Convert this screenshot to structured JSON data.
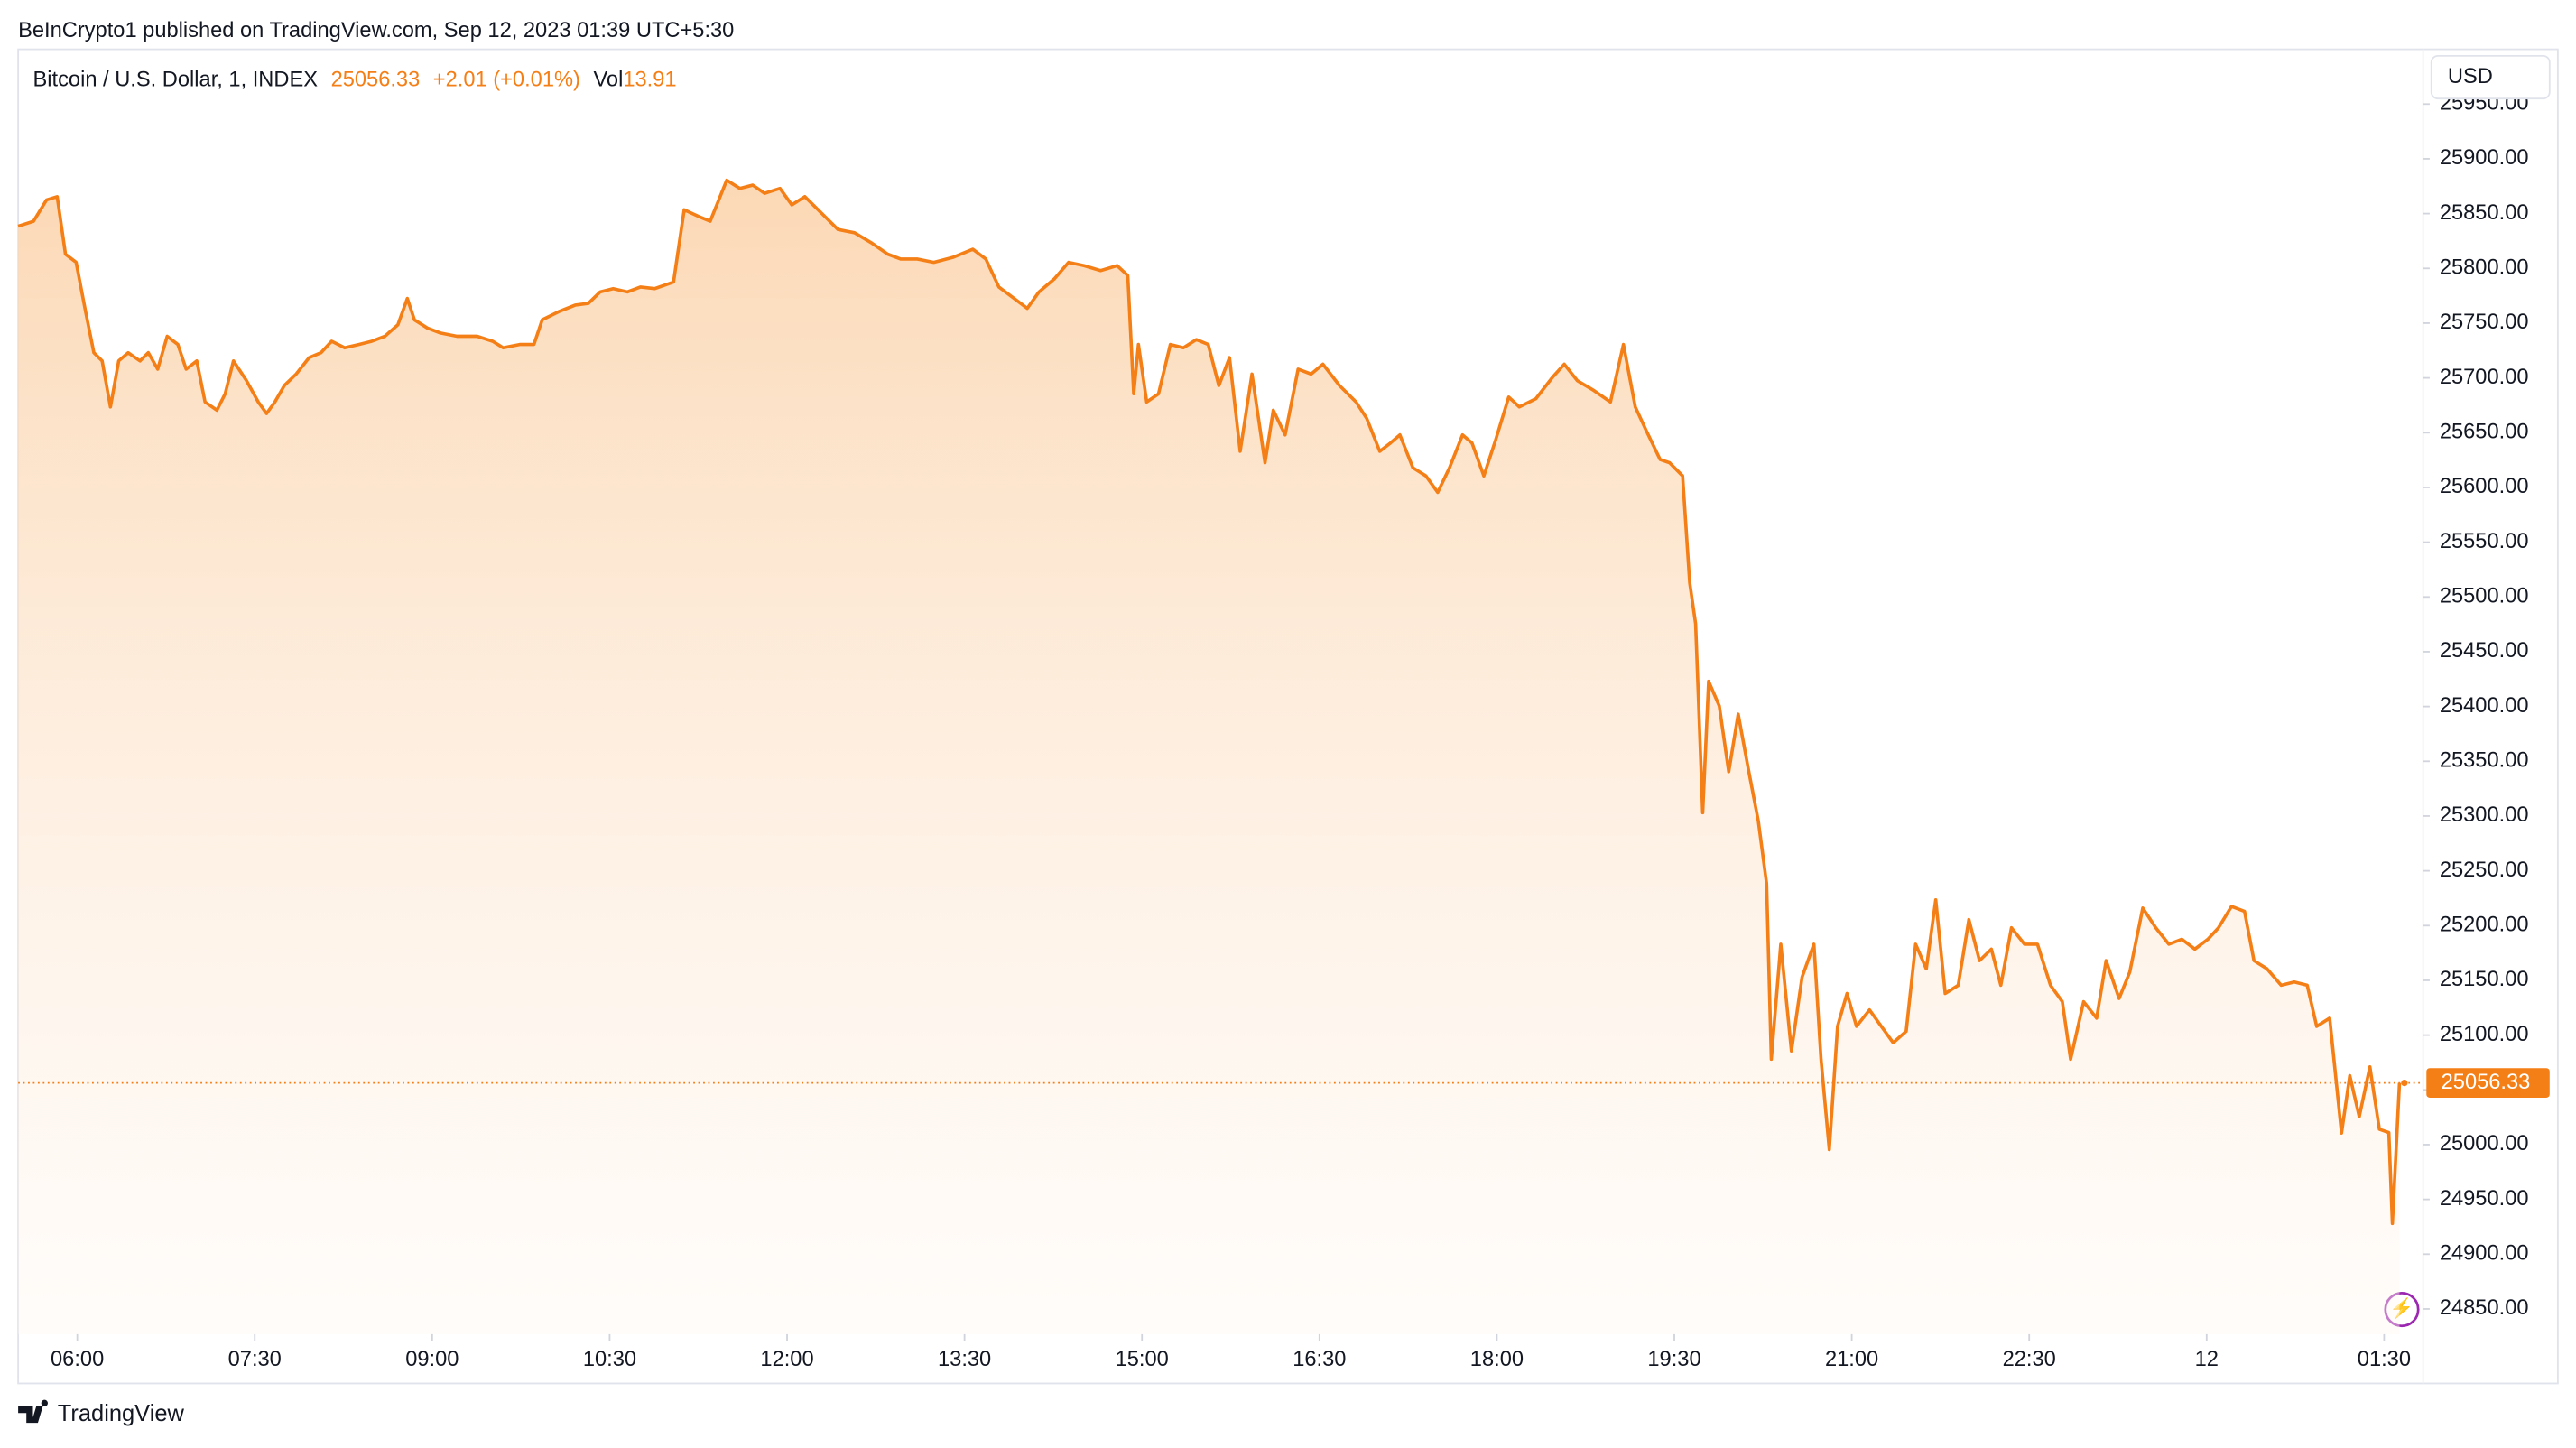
{
  "header": {
    "publisher": "BeInCrypto1 published on TradingView.com, Sep 12, 2023 01:39 UTC+5:30"
  },
  "legend": {
    "symbol": "Bitcoin / U.S. Dollar, 1, INDEX",
    "price": "25056.33",
    "change": "+2.01 (+0.01%)",
    "volume_label": "Vol",
    "volume": "13.91"
  },
  "currency": "USD",
  "footer": {
    "brand": "TradingView"
  },
  "chart_data": {
    "type": "area",
    "color": "#f57f17",
    "last_price": 25056.33,
    "last_price_label": "25056.33",
    "xlim": [
      5.5,
      25.83
    ],
    "ylim": [
      24827,
      26000
    ],
    "xticks": [
      {
        "value": 6,
        "label": "06:00"
      },
      {
        "value": 7.5,
        "label": "07:30"
      },
      {
        "value": 9,
        "label": "09:00"
      },
      {
        "value": 10.5,
        "label": "10:30"
      },
      {
        "value": 12,
        "label": "12:00"
      },
      {
        "value": 13.5,
        "label": "13:30"
      },
      {
        "value": 15,
        "label": "15:00"
      },
      {
        "value": 16.5,
        "label": "16:30"
      },
      {
        "value": 18,
        "label": "18:00"
      },
      {
        "value": 19.5,
        "label": "19:30"
      },
      {
        "value": 21,
        "label": "21:00"
      },
      {
        "value": 22.5,
        "label": "22:30"
      },
      {
        "value": 24,
        "label": "12"
      },
      {
        "value": 25.5,
        "label": "01:30"
      }
    ],
    "yticks": [
      {
        "value": 24850,
        "label": "24850.00"
      },
      {
        "value": 24900,
        "label": "24900.00"
      },
      {
        "value": 24950,
        "label": "24950.00"
      },
      {
        "value": 25000,
        "label": "25000.00"
      },
      {
        "value": 25050,
        "label": "25050.00"
      },
      {
        "value": 25100,
        "label": "25100.00"
      },
      {
        "value": 25150,
        "label": "25150.00"
      },
      {
        "value": 25200,
        "label": "25200.00"
      },
      {
        "value": 25250,
        "label": "25250.00"
      },
      {
        "value": 25300,
        "label": "25300.00"
      },
      {
        "value": 25350,
        "label": "25350.00"
      },
      {
        "value": 25400,
        "label": "25400.00"
      },
      {
        "value": 25450,
        "label": "25450.00"
      },
      {
        "value": 25500,
        "label": "25500.00"
      },
      {
        "value": 25550,
        "label": "25550.00"
      },
      {
        "value": 25600,
        "label": "25600.00"
      },
      {
        "value": 25650,
        "label": "25650.00"
      },
      {
        "value": 25700,
        "label": "25700.00"
      },
      {
        "value": 25750,
        "label": "25750.00"
      },
      {
        "value": 25800,
        "label": "25800.00"
      },
      {
        "value": 25850,
        "label": "25850.00"
      },
      {
        "value": 25900,
        "label": "25900.00"
      },
      {
        "value": 25950,
        "label": "25950.00"
      }
    ],
    "x": [
      5.5,
      5.63,
      5.74,
      5.83,
      5.9,
      5.99,
      6.07,
      6.14,
      6.21,
      6.28,
      6.35,
      6.43,
      6.53,
      6.6,
      6.68,
      6.76,
      6.85,
      6.92,
      7.01,
      7.08,
      7.18,
      7.25,
      7.32,
      7.43,
      7.53,
      7.6,
      7.67,
      7.75,
      7.85,
      7.96,
      8.06,
      8.15,
      8.26,
      8.38,
      8.49,
      8.6,
      8.71,
      8.79,
      8.85,
      8.96,
      9.07,
      9.21,
      9.38,
      9.51,
      9.6,
      9.74,
      9.86,
      9.93,
      10.07,
      10.21,
      10.32,
      10.42,
      10.53,
      10.65,
      10.76,
      10.88,
      11.04,
      11.13,
      11.25,
      11.35,
      11.49,
      11.6,
      11.71,
      11.81,
      11.94,
      12.04,
      12.15,
      12.29,
      12.43,
      12.57,
      12.71,
      12.85,
      12.96,
      13.1,
      13.24,
      13.4,
      13.57,
      13.68,
      13.79,
      13.92,
      14.03,
      14.13,
      14.26,
      14.38,
      14.51,
      14.65,
      14.79,
      14.88,
      14.93,
      14.97,
      15.04,
      15.14,
      15.24,
      15.35,
      15.46,
      15.56,
      15.65,
      15.74,
      15.83,
      15.93,
      16.04,
      16.11,
      16.21,
      16.32,
      16.43,
      16.53,
      16.67,
      16.81,
      16.9,
      17.01,
      17.1,
      17.18,
      17.29,
      17.4,
      17.5,
      17.6,
      17.71,
      17.79,
      17.89,
      17.99,
      18.1,
      18.19,
      18.33,
      18.47,
      18.57,
      18.68,
      18.82,
      18.96,
      19.07,
      19.17,
      19.26,
      19.38,
      19.46,
      19.57,
      19.63,
      19.68,
      19.74,
      19.79,
      19.88,
      19.96,
      20.04,
      20.13,
      20.21,
      20.28,
      20.32,
      20.4,
      20.49,
      20.58,
      20.68,
      20.74,
      20.81,
      20.88,
      20.96,
      21.04,
      21.15,
      21.25,
      21.35,
      21.46,
      21.54,
      21.63,
      21.71,
      21.79,
      21.9,
      21.99,
      22.08,
      22.18,
      22.26,
      22.35,
      22.46,
      22.57,
      22.68,
      22.78,
      22.85,
      22.96,
      23.07,
      23.15,
      23.26,
      23.35,
      23.46,
      23.57,
      23.68,
      23.79,
      23.9,
      24.01,
      24.1,
      24.21,
      24.32,
      24.4,
      24.51,
      24.63,
      24.74,
      24.85,
      24.93,
      25.04,
      25.14,
      25.21,
      25.29,
      25.38,
      25.46,
      25.54,
      25.57,
      25.63
    ],
    "series": [
      {
        "name": "Bitcoin / U.S. Dollar",
        "color": "#f57f17",
        "values": [
          25838.5,
          25843,
          25862.5,
          25865.5,
          25813,
          25805.5,
          25760.5,
          25723,
          25715.5,
          25673.5,
          25715.5,
          25723,
          25715.5,
          25723,
          25708,
          25738,
          25730.5,
          25708,
          25715.5,
          25678,
          25670.5,
          25685.5,
          25715.5,
          25697.5,
          25678,
          25667.5,
          25678,
          25693,
          25703.5,
          25718.5,
          25723,
          25733.5,
          25727.5,
          25730.5,
          25733.5,
          25738,
          25748.5,
          25772.5,
          25753,
          25745.5,
          25741,
          25738,
          25738,
          25733.5,
          25727.5,
          25730.5,
          25730.5,
          25753,
          25760.5,
          25766.5,
          25768,
          25778.5,
          25781.5,
          25778.5,
          25783,
          25781.5,
          25787.5,
          25853.5,
          25847.5,
          25843,
          25880.5,
          25873,
          25876,
          25868.5,
          25873,
          25858,
          25865.5,
          25850.5,
          25835.5,
          25832.5,
          25823.5,
          25813,
          25808.5,
          25808.5,
          25805.5,
          25810,
          25817.5,
          25808.5,
          25783,
          25772.5,
          25763.5,
          25778.5,
          25790.5,
          25805.5,
          25802.5,
          25798,
          25802.5,
          25793.5,
          25685.5,
          25730.5,
          25678,
          25685.5,
          25730.5,
          25727.5,
          25735,
          25730.5,
          25693,
          25718.5,
          25633,
          25703.5,
          25622.5,
          25670.5,
          25648,
          25708,
          25703.5,
          25712.5,
          25693,
          25678,
          25663,
          25633,
          25640.5,
          25648,
          25618,
          25610.5,
          25595.5,
          25618,
          25648,
          25640.5,
          25610.5,
          25643.5,
          25682.5,
          25673.5,
          25681,
          25700.5,
          25712.5,
          25697.5,
          25688.5,
          25678,
          25730.5,
          25673.5,
          25652.5,
          25625.5,
          25622.5,
          25610.5,
          25513,
          25475.5,
          25303,
          25423,
          25400.5,
          25340.5,
          25393,
          25340.5,
          25295.5,
          25238.5,
          25078,
          25183,
          25085.5,
          25153,
          25183,
          25078,
          24995.5,
          25108,
          25138,
          25108,
          25123,
          25108,
          25093,
          25103.5,
          25183,
          25160.5,
          25223.5,
          25138,
          25145.5,
          25205.5,
          25168,
          25178.5,
          25145.5,
          25198,
          25183,
          25183,
          25145.5,
          25130.5,
          25078,
          25130.5,
          25115.5,
          25168,
          25133.5,
          25157.5,
          25216,
          25198,
          25183,
          25187.5,
          25178.5,
          25187.5,
          25198,
          25217.5,
          25213,
          25168,
          25160.5,
          25145.5,
          25148.5,
          25145.5,
          25108,
          25115.5,
          25010.5,
          25063,
          25025.5,
          25071,
          25014,
          25011,
          24928,
          25056.33
        ]
      }
    ]
  }
}
